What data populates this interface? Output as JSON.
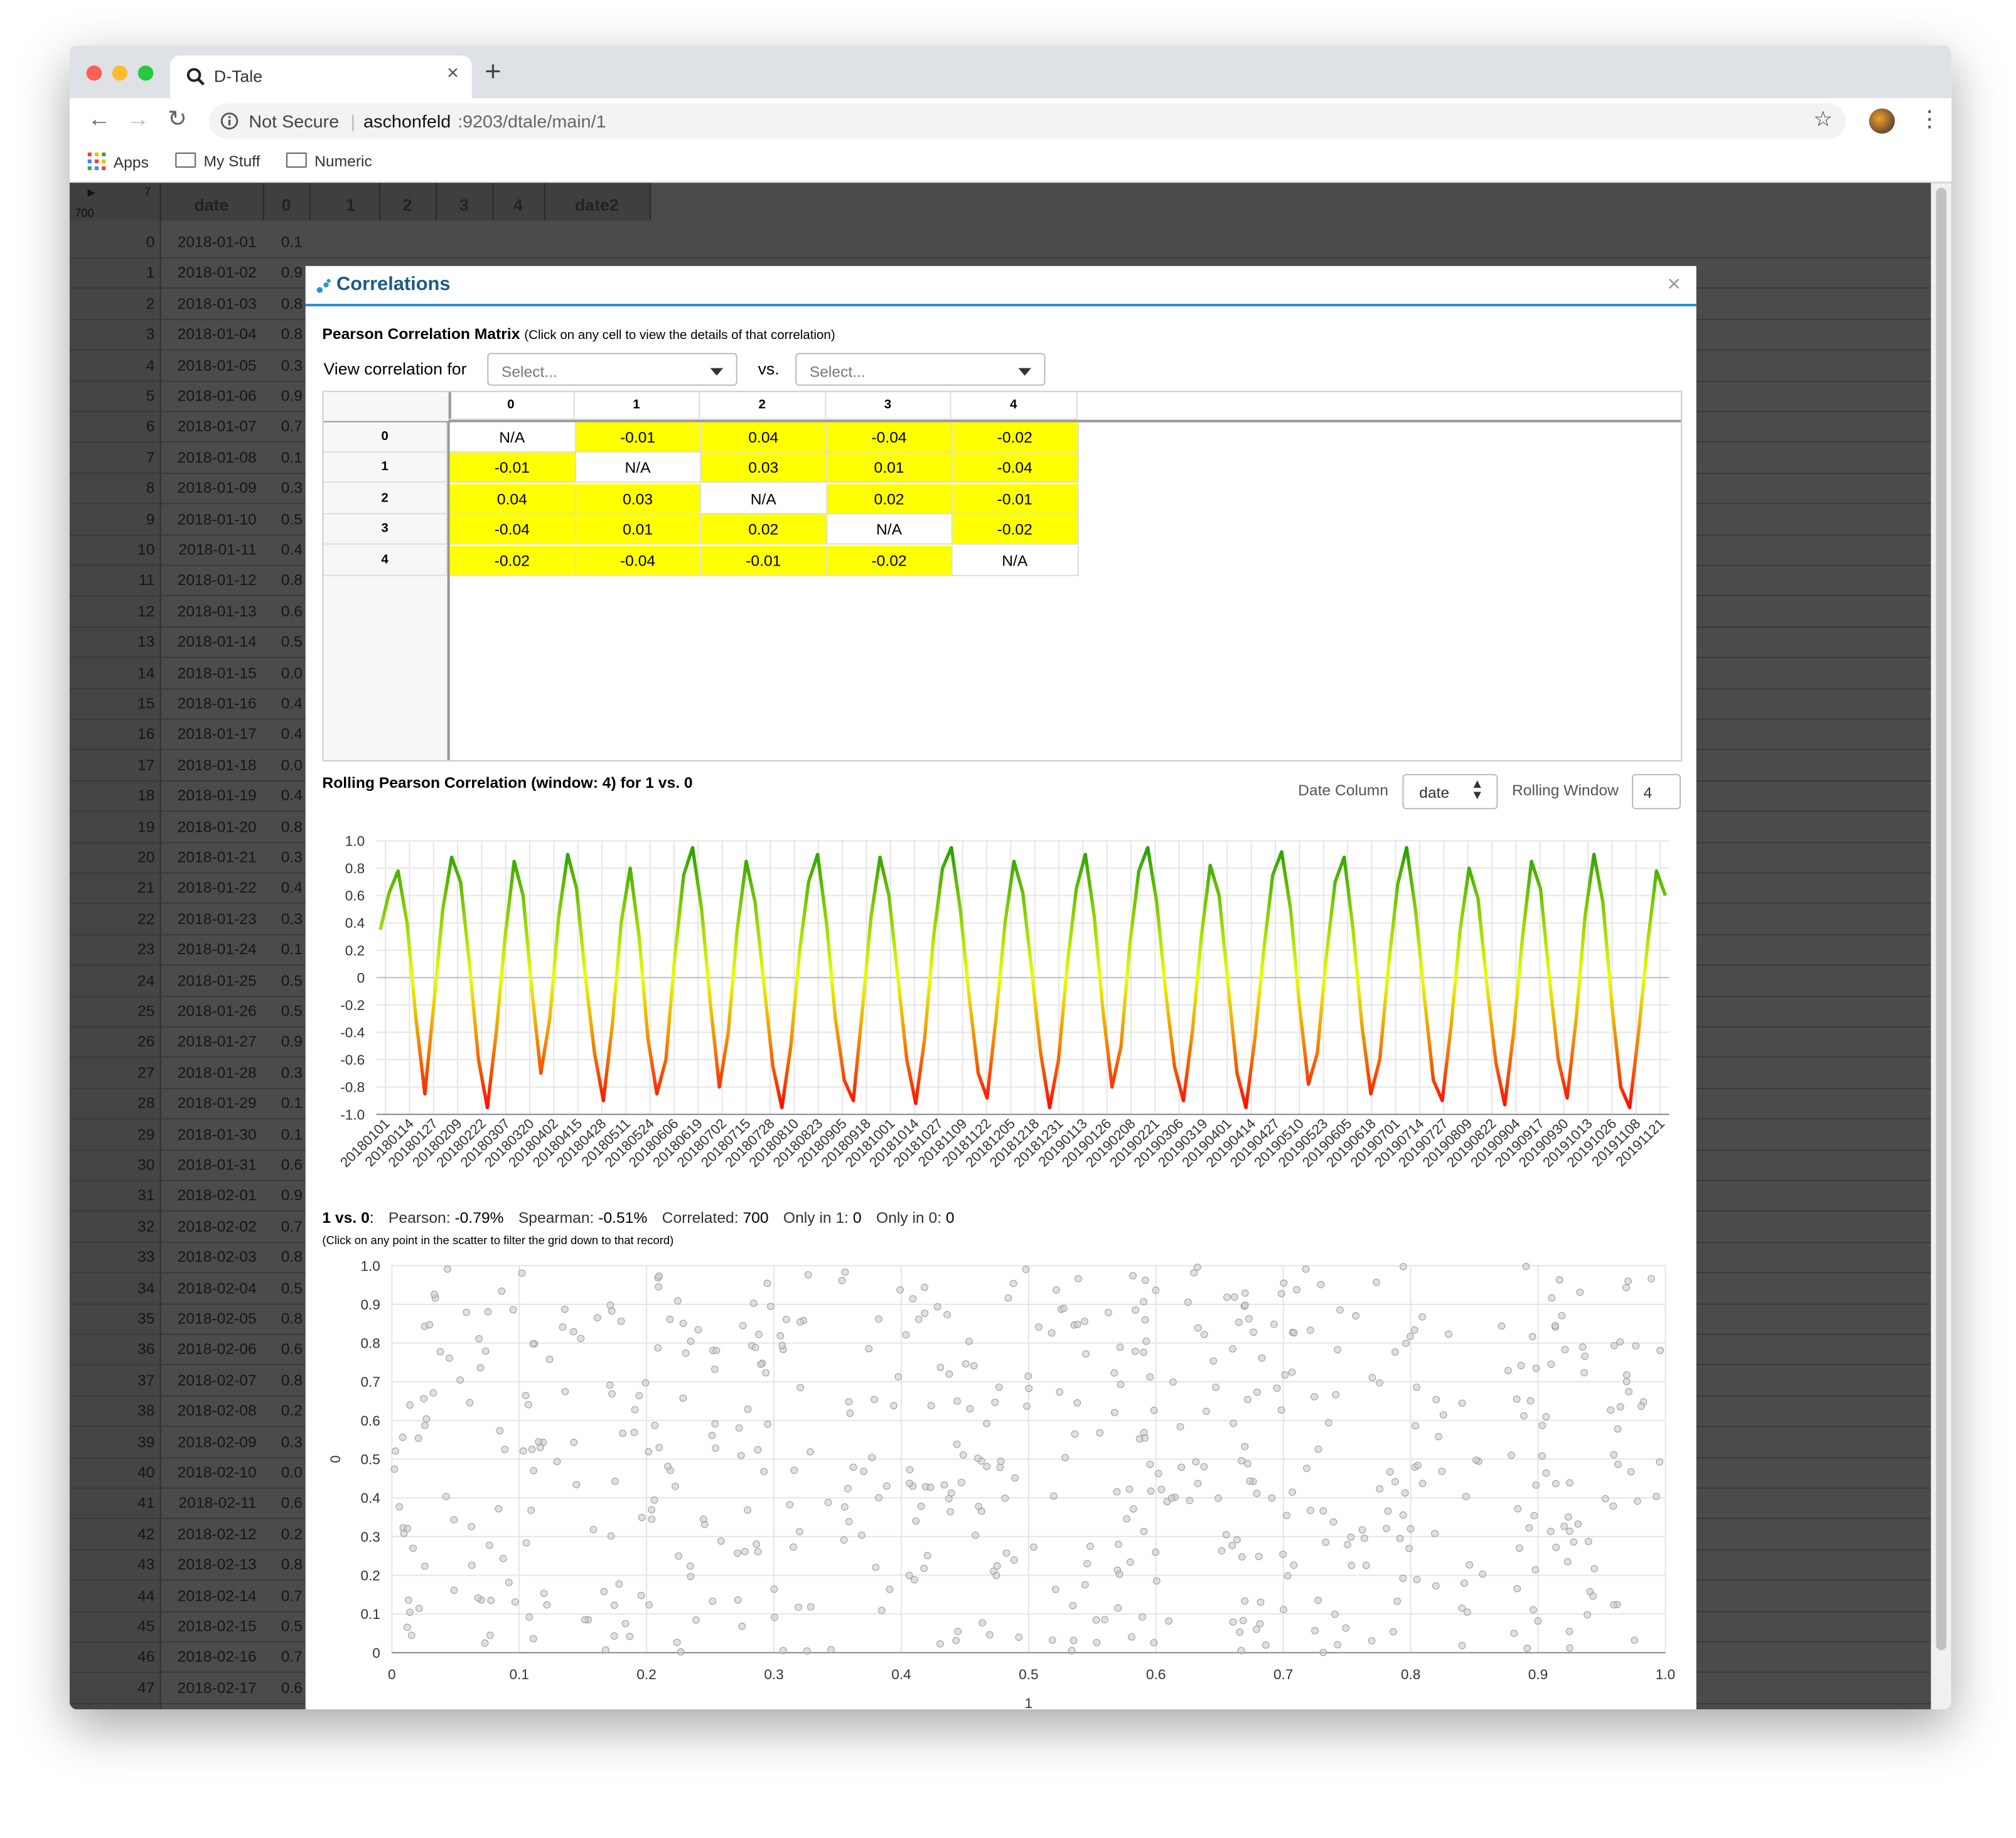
{
  "browser": {
    "tab_title": "D-Tale",
    "security": "Not Secure",
    "url_host": "aschonfeld",
    "url_rest": ":9203/dtale/main/1",
    "bookmarks": [
      "Apps",
      "My Stuff",
      "Numeric"
    ]
  },
  "grid": {
    "corner_count": "7",
    "corner_rows": "700",
    "columns": [
      "date",
      "0",
      "1",
      "2",
      "3",
      "4",
      "date2"
    ],
    "rows": [
      {
        "i": "0",
        "d": "2018-01-01",
        "v": "0.1"
      },
      {
        "i": "1",
        "d": "2018-01-02",
        "v": "0.9"
      },
      {
        "i": "2",
        "d": "2018-01-03",
        "v": "0.8"
      },
      {
        "i": "3",
        "d": "2018-01-04",
        "v": "0.8"
      },
      {
        "i": "4",
        "d": "2018-01-05",
        "v": "0.3"
      },
      {
        "i": "5",
        "d": "2018-01-06",
        "v": "0.9"
      },
      {
        "i": "6",
        "d": "2018-01-07",
        "v": "0.7"
      },
      {
        "i": "7",
        "d": "2018-01-08",
        "v": "0.1"
      },
      {
        "i": "8",
        "d": "2018-01-09",
        "v": "0.3"
      },
      {
        "i": "9",
        "d": "2018-01-10",
        "v": "0.5"
      },
      {
        "i": "10",
        "d": "2018-01-11",
        "v": "0.4"
      },
      {
        "i": "11",
        "d": "2018-01-12",
        "v": "0.8"
      },
      {
        "i": "12",
        "d": "2018-01-13",
        "v": "0.6"
      },
      {
        "i": "13",
        "d": "2018-01-14",
        "v": "0.5"
      },
      {
        "i": "14",
        "d": "2018-01-15",
        "v": "0.0"
      },
      {
        "i": "15",
        "d": "2018-01-16",
        "v": "0.4"
      },
      {
        "i": "16",
        "d": "2018-01-17",
        "v": "0.4"
      },
      {
        "i": "17",
        "d": "2018-01-18",
        "v": "0.0"
      },
      {
        "i": "18",
        "d": "2018-01-19",
        "v": "0.4"
      },
      {
        "i": "19",
        "d": "2018-01-20",
        "v": "0.8"
      },
      {
        "i": "20",
        "d": "2018-01-21",
        "v": "0.3"
      },
      {
        "i": "21",
        "d": "2018-01-22",
        "v": "0.4"
      },
      {
        "i": "22",
        "d": "2018-01-23",
        "v": "0.3"
      },
      {
        "i": "23",
        "d": "2018-01-24",
        "v": "0.1"
      },
      {
        "i": "24",
        "d": "2018-01-25",
        "v": "0.5"
      },
      {
        "i": "25",
        "d": "2018-01-26",
        "v": "0.5"
      },
      {
        "i": "26",
        "d": "2018-01-27",
        "v": "0.9"
      },
      {
        "i": "27",
        "d": "2018-01-28",
        "v": "0.3"
      },
      {
        "i": "28",
        "d": "2018-01-29",
        "v": "0.1"
      },
      {
        "i": "29",
        "d": "2018-01-30",
        "v": "0.1"
      },
      {
        "i": "30",
        "d": "2018-01-31",
        "v": "0.6"
      },
      {
        "i": "31",
        "d": "2018-02-01",
        "v": "0.9"
      },
      {
        "i": "32",
        "d": "2018-02-02",
        "v": "0.7"
      },
      {
        "i": "33",
        "d": "2018-02-03",
        "v": "0.8"
      },
      {
        "i": "34",
        "d": "2018-02-04",
        "v": "0.5"
      },
      {
        "i": "35",
        "d": "2018-02-05",
        "v": "0.8"
      },
      {
        "i": "36",
        "d": "2018-02-06",
        "v": "0.6"
      },
      {
        "i": "37",
        "d": "2018-02-07",
        "v": "0.8"
      },
      {
        "i": "38",
        "d": "2018-02-08",
        "v": "0.2"
      },
      {
        "i": "39",
        "d": "2018-02-09",
        "v": "0.3"
      },
      {
        "i": "40",
        "d": "2018-02-10",
        "v": "0.0"
      },
      {
        "i": "41",
        "d": "2018-02-11",
        "v": "0.6"
      },
      {
        "i": "42",
        "d": "2018-02-12",
        "v": "0.2"
      },
      {
        "i": "43",
        "d": "2018-02-13",
        "v": "0.8"
      },
      {
        "i": "44",
        "d": "2018-02-14",
        "v": "0.7"
      },
      {
        "i": "45",
        "d": "2018-02-15",
        "v": "0.5"
      },
      {
        "i": "46",
        "d": "2018-02-16",
        "v": "0.7"
      },
      {
        "i": "47",
        "d": "2018-02-17",
        "v": "0.6"
      }
    ]
  },
  "modal": {
    "title": "Correlations",
    "close": "×",
    "matrix_title": "Pearson Correlation Matrix",
    "matrix_hint": "(Click on any cell to view the details of that correlation)",
    "view_label": "View correlation for",
    "vs_label": "vs.",
    "select_placeholder": "Select...",
    "matrix_headers": [
      "0",
      "1",
      "2",
      "3",
      "4"
    ],
    "matrix": [
      [
        "N/A",
        "-0.01",
        "0.04",
        "-0.04",
        "-0.02"
      ],
      [
        "-0.01",
        "N/A",
        "0.03",
        "0.01",
        "-0.04"
      ],
      [
        "0.04",
        "0.03",
        "N/A",
        "0.02",
        "-0.01"
      ],
      [
        "-0.04",
        "0.01",
        "0.02",
        "N/A",
        "-0.02"
      ],
      [
        "-0.02",
        "-0.04",
        "-0.01",
        "-0.02",
        "N/A"
      ]
    ],
    "rolling_title": "Rolling Pearson Correlation (window: 4) for 1 vs. 0",
    "date_column_label": "Date Column",
    "date_column_value": "date",
    "rolling_window_label": "Rolling Window",
    "rolling_window_value": "4",
    "stats": {
      "pair": "1 vs. 0",
      "pearson_label": "Pearson:",
      "pearson": "-0.79%",
      "spearman_label": "Spearman:",
      "spearman": "-0.51%",
      "correlated_label": "Correlated:",
      "correlated": "700",
      "only1_label": "Only in 1:",
      "only1": "0",
      "only0_label": "Only in 0:",
      "only0": "0"
    },
    "scatter_hint": "(Click on any point in the scatter to filter the grid down to that record)"
  },
  "colors": {
    "accent": "#2a91d1",
    "cell_yellow": "#ffff00",
    "grid_bg": "#4b4b4b"
  },
  "chart_data": [
    {
      "type": "line",
      "title": "Rolling Pearson Correlation (window: 4) for 1 vs. 0",
      "ylim": [
        -1.0,
        1.0
      ],
      "yticks": [
        "1.0",
        "0.8",
        "0.6",
        "0.4",
        "0.2",
        "0",
        "-0.2",
        "-0.4",
        "-0.6",
        "-0.8",
        "-1.0"
      ],
      "x_tick_labels": [
        "20180101",
        "20180114",
        "20180127",
        "20180209",
        "20180222",
        "20180307",
        "20180320",
        "20180402",
        "20180415",
        "20180428",
        "20180511",
        "20180524",
        "20180606",
        "20180619",
        "20180702",
        "20180715",
        "20180728",
        "20180810",
        "20180823",
        "20180905",
        "20180918",
        "20181001",
        "20181014",
        "20181027",
        "20181109",
        "20181122",
        "20181205",
        "20181218",
        "20181231",
        "20190113",
        "20190126",
        "20190208",
        "20190221",
        "20190306",
        "20190319",
        "20190401",
        "20190414",
        "20190427",
        "20190510",
        "20190523",
        "20190605",
        "20190618",
        "20190701",
        "20190714",
        "20190727",
        "20190809",
        "20190822",
        "20190904",
        "20190917",
        "20190930",
        "20191013",
        "20191026",
        "20191108",
        "20191121"
      ],
      "series": [
        {
          "values": [
            0.35,
            0.62,
            0.78,
            0.4,
            -0.3,
            -0.85,
            -0.2,
            0.5,
            0.88,
            0.7,
            0.1,
            -0.6,
            -0.95,
            -0.4,
            0.3,
            0.85,
            0.6,
            -0.1,
            -0.7,
            -0.3,
            0.45,
            0.9,
            0.65,
            0.0,
            -0.55,
            -0.9,
            -0.35,
            0.4,
            0.8,
            0.3,
            -0.45,
            -0.85,
            -0.6,
            0.15,
            0.75,
            0.95,
            0.5,
            -0.2,
            -0.8,
            -0.4,
            0.35,
            0.85,
            0.55,
            -0.05,
            -0.65,
            -0.95,
            -0.5,
            0.2,
            0.7,
            0.9,
            0.4,
            -0.3,
            -0.75,
            -0.9,
            -0.25,
            0.45,
            0.88,
            0.6,
            0.0,
            -0.6,
            -0.92,
            -0.45,
            0.3,
            0.8,
            0.95,
            0.5,
            -0.15,
            -0.7,
            -0.88,
            -0.3,
            0.4,
            0.85,
            0.62,
            0.05,
            -0.55,
            -0.95,
            -0.6,
            0.1,
            0.65,
            0.9,
            0.45,
            -0.25,
            -0.8,
            -0.5,
            0.25,
            0.78,
            0.95,
            0.55,
            -0.1,
            -0.65,
            -0.9,
            -0.4,
            0.3,
            0.82,
            0.6,
            -0.05,
            -0.7,
            -0.95,
            -0.45,
            0.2,
            0.75,
            0.92,
            0.5,
            -0.2,
            -0.78,
            -0.55,
            0.15,
            0.7,
            0.88,
            0.35,
            -0.35,
            -0.85,
            -0.6,
            0.1,
            0.68,
            0.95,
            0.5,
            -0.15,
            -0.75,
            -0.9,
            -0.35,
            0.35,
            0.8,
            0.58,
            -0.05,
            -0.62,
            -0.93,
            -0.4,
            0.3,
            0.85,
            0.65,
            0.0,
            -0.6,
            -0.88,
            -0.3,
            0.45,
            0.9,
            0.55,
            -0.2,
            -0.8,
            -0.95,
            -0.4,
            0.25,
            0.78,
            0.6
          ]
        }
      ]
    },
    {
      "type": "scatter",
      "xlabel": "1",
      "ylabel": "0",
      "xlim": [
        0,
        1.0
      ],
      "ylim": [
        0,
        1.0
      ],
      "xticks": [
        "0",
        "0.1",
        "0.2",
        "0.3",
        "0.4",
        "0.5",
        "0.6",
        "0.7",
        "0.8",
        "0.9",
        "1.0"
      ],
      "yticks": [
        "1.0",
        "0.9",
        "0.8",
        "0.7",
        "0.6",
        "0.5",
        "0.4",
        "0.3",
        "0.2",
        "0.1",
        "0"
      ],
      "count": 700
    }
  ]
}
